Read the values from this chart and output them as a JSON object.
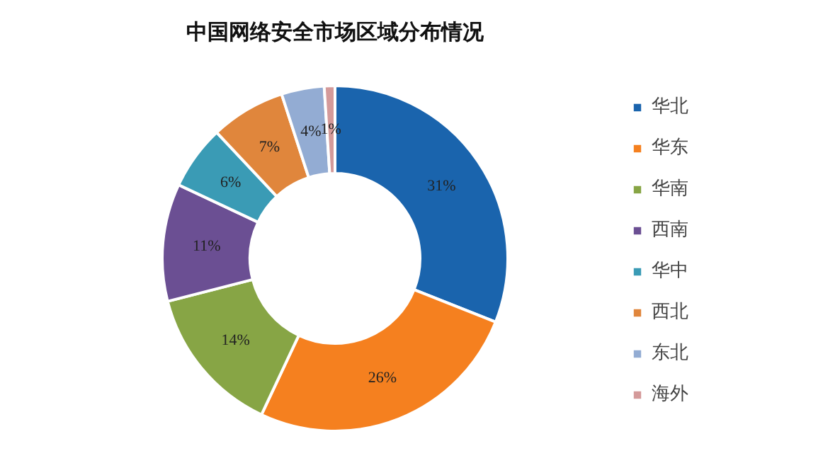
{
  "chart_data": {
    "type": "donut",
    "title": "中国网络安全市场区域分布情况",
    "categories": [
      "华北",
      "华东",
      "华南",
      "西南",
      "华中",
      "西北",
      "东北",
      "海外"
    ],
    "values": [
      31,
      26,
      14,
      11,
      6,
      7,
      4,
      1
    ],
    "colors": [
      "#1a64ad",
      "#f5801f",
      "#87a545",
      "#6b4f93",
      "#3a9bb5",
      "#e0863c",
      "#93acd3",
      "#d49a9a"
    ],
    "value_labels": [
      "31%",
      "26%",
      "14%",
      "11%",
      "6%",
      "7%",
      "4%",
      "1%"
    ],
    "legend": "right"
  }
}
